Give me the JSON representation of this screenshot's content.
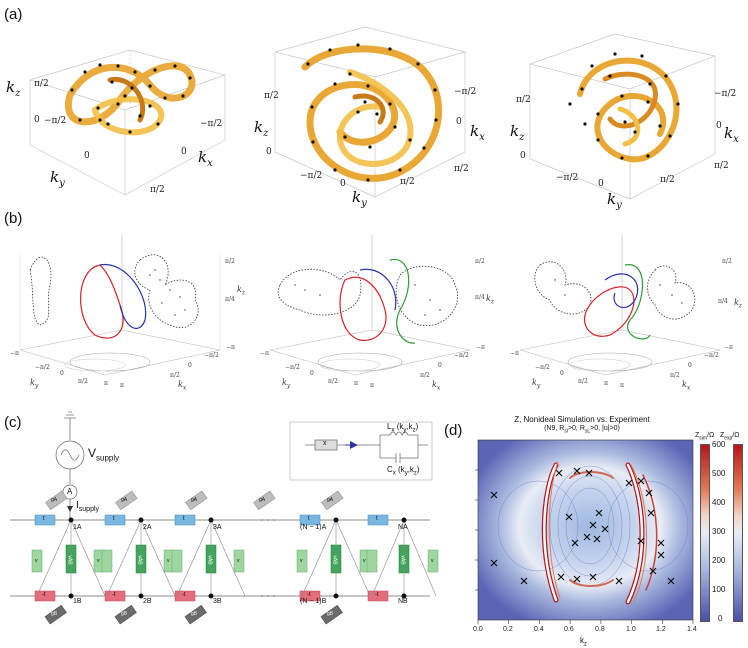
{
  "panels": {
    "a": {
      "label": "(a)",
      "axes": {
        "kz": "k",
        "kz_sub": "z",
        "kx": "k",
        "kx_sub": "x",
        "ky": "k",
        "ky_sub": "y"
      },
      "ticks": {
        "zero": "0",
        "minus_half_pi": "−π/2",
        "half_pi": "π/2"
      }
    },
    "b": {
      "label": "(b)",
      "ticks": {
        "neg_pi": "−π",
        "neg_half_pi": "−π/2",
        "zero": "0",
        "half_pi": "π/2",
        "pi": "π",
        "quarter_pi": "π/4"
      },
      "axes": {
        "ky": "k",
        "ky_sub": "y",
        "kx": "k",
        "kx_sub": "x",
        "kz": "k",
        "kz_sub": "z"
      }
    },
    "c": {
      "label": "(c)",
      "v_supply": "V",
      "v_supply_sub": "supply",
      "ammeter": "A",
      "i_supply": "I",
      "i_supply_sub": "supply",
      "legend_box": "x",
      "legend_L": "L",
      "legend_L_sub": "x",
      "legend_L_args": "(k",
      "legend_C": "C",
      "legend_C_sub": "x",
      "legend_args_k": "y",
      "legend_args_k2": "z",
      "nodes_top": [
        "1A",
        "2A",
        "3A",
        "(N − 1)A",
        "NA"
      ],
      "nodes_bottom": [
        "1B",
        "2B",
        "3B",
        "(N − 1)B",
        "NB"
      ],
      "comp_t": "t",
      "comp_neg_t": "-t",
      "comp_gA": "gA",
      "comp_gB": "gB",
      "comp_v": "v",
      "comp_vAB": "vAB"
    },
    "d": {
      "label": "(d)",
      "title_line1": "Z, Nonideal Simulation vs. Experiment",
      "title_line2": "(N9, R",
      "title_line2_full": "(N9, R_sl>0, R_sL>0, |u|>0)",
      "xlabel": "k",
      "xlabel_sub": "z",
      "xticks": [
        "0.0",
        "0.2",
        "0.4",
        "0.6",
        "0.8",
        "1.0",
        "1.2",
        "1.4"
      ],
      "colorbar_sim": "Z",
      "colorbar_sim_sub": "sim",
      "colorbar_exp": "Z",
      "colorbar_exp_sub": "exp",
      "colorbar_unit": "/Ω",
      "colorbar_ticks": [
        "600",
        "500",
        "400",
        "300",
        "200",
        "100",
        "0"
      ],
      "colors": {
        "low": "#4a4fa8",
        "mid": "#dfe3f2",
        "high": "#b4161c"
      }
    }
  }
}
